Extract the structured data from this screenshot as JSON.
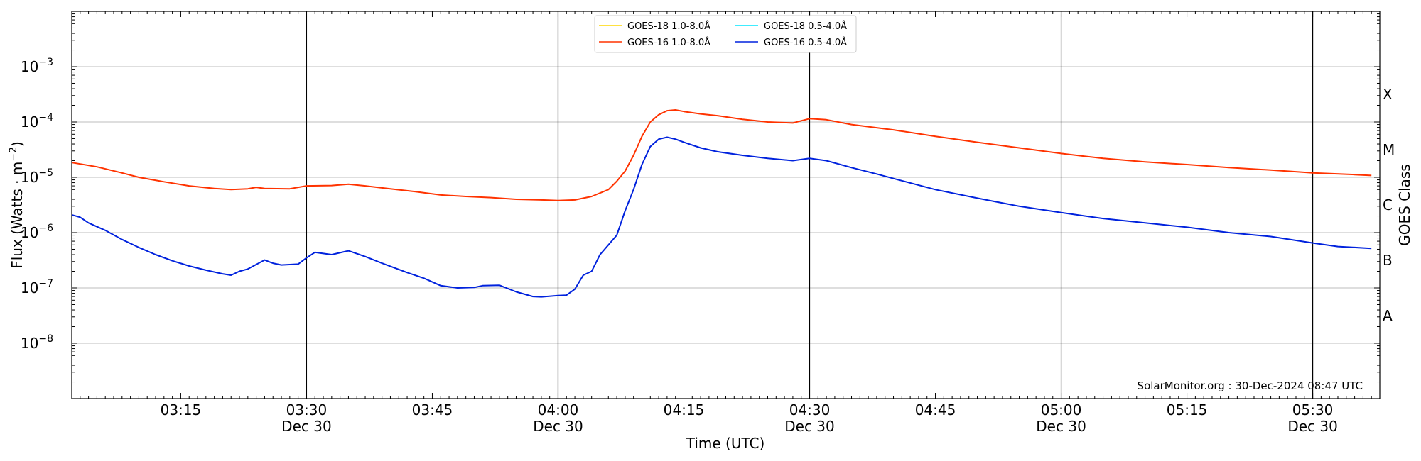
{
  "chart_data": {
    "type": "line",
    "xlabel": "Time (UTC)",
    "ylabel": "Flux (Watts · m",
    "ylabel_sup": "−2",
    "ylabel_close": ")",
    "y2label": "GOES Class",
    "y_scale": "log",
    "xlim": [
      "03:02",
      "05:38"
    ],
    "ylim": [
      1e-09,
      0.01
    ],
    "grid": "horizontal at decades",
    "legend_position": "top-center",
    "x_ticks": [
      {
        "t": "03:15",
        "label": "03:15",
        "date": ""
      },
      {
        "t": "03:30",
        "label": "03:30",
        "date": "Dec 30"
      },
      {
        "t": "03:45",
        "label": "03:45",
        "date": ""
      },
      {
        "t": "04:00",
        "label": "04:00",
        "date": "Dec 30"
      },
      {
        "t": "04:15",
        "label": "04:15",
        "date": ""
      },
      {
        "t": "04:30",
        "label": "04:30",
        "date": "Dec 30"
      },
      {
        "t": "04:45",
        "label": "04:45",
        "date": ""
      },
      {
        "t": "05:00",
        "label": "05:00",
        "date": "Dec 30"
      },
      {
        "t": "05:15",
        "label": "05:15",
        "date": ""
      },
      {
        "t": "05:30",
        "label": "05:30",
        "date": "Dec 30"
      }
    ],
    "vlines": [
      "03:30",
      "04:00",
      "04:30",
      "05:00",
      "05:30"
    ],
    "y_ticks": [
      {
        "exp": -8,
        "base": "10",
        "sup": "−8"
      },
      {
        "exp": -7,
        "base": "10",
        "sup": "−7"
      },
      {
        "exp": -6,
        "base": "10",
        "sup": "−6"
      },
      {
        "exp": -5,
        "base": "10",
        "sup": "−5"
      },
      {
        "exp": -4,
        "base": "10",
        "sup": "−4"
      },
      {
        "exp": -3,
        "base": "10",
        "sup": "−3"
      }
    ],
    "goes_classes": [
      {
        "label": "A",
        "exp": -8
      },
      {
        "label": "B",
        "exp": -7
      },
      {
        "label": "C",
        "exp": -6
      },
      {
        "label": "M",
        "exp": -5
      },
      {
        "label": "X",
        "exp": -4
      }
    ],
    "annotation": "SolarMonitor.org : 30-Dec-2024 08:47 UTC",
    "series": [
      {
        "name": "GOES-18 1.0-8.0Å",
        "color": "#ffd700",
        "points": []
      },
      {
        "name": "GOES-16 1.0-8.0Å",
        "color": "#ff3300",
        "points": [
          [
            "03:02",
            1.85e-05
          ],
          [
            "03:05",
            1.55e-05
          ],
          [
            "03:08",
            1.2e-05
          ],
          [
            "03:10",
            1e-05
          ],
          [
            "03:13",
            8.3e-06
          ],
          [
            "03:16",
            7e-06
          ],
          [
            "03:19",
            6.3e-06
          ],
          [
            "03:21",
            6e-06
          ],
          [
            "03:23",
            6.2e-06
          ],
          [
            "03:24",
            6.6e-06
          ],
          [
            "03:25",
            6.3e-06
          ],
          [
            "03:28",
            6.2e-06
          ],
          [
            "03:30",
            7e-06
          ],
          [
            "03:33",
            7.1e-06
          ],
          [
            "03:35",
            7.5e-06
          ],
          [
            "03:37",
            7e-06
          ],
          [
            "03:40",
            6.2e-06
          ],
          [
            "03:43",
            5.5e-06
          ],
          [
            "03:46",
            4.8e-06
          ],
          [
            "03:49",
            4.5e-06
          ],
          [
            "03:52",
            4.3e-06
          ],
          [
            "03:55",
            4e-06
          ],
          [
            "03:58",
            3.9e-06
          ],
          [
            "04:00",
            3.8e-06
          ],
          [
            "04:02",
            3.9e-06
          ],
          [
            "04:04",
            4.5e-06
          ],
          [
            "04:06",
            6e-06
          ],
          [
            "04:07",
            8.5e-06
          ],
          [
            "04:08",
            1.3e-05
          ],
          [
            "04:09",
            2.5e-05
          ],
          [
            "04:10",
            5.5e-05
          ],
          [
            "04:11",
            0.0001
          ],
          [
            "04:12",
            0.000135
          ],
          [
            "04:13",
            0.00016
          ],
          [
            "04:14",
            0.000165
          ],
          [
            "04:15",
            0.000155
          ],
          [
            "04:17",
            0.00014
          ],
          [
            "04:19",
            0.00013
          ],
          [
            "04:22",
            0.000112
          ],
          [
            "04:25",
            0.0001
          ],
          [
            "04:28",
            9.6e-05
          ],
          [
            "04:30",
            0.000115
          ],
          [
            "04:32",
            0.00011
          ],
          [
            "04:35",
            9e-05
          ],
          [
            "04:40",
            7.2e-05
          ],
          [
            "04:45",
            5.5e-05
          ],
          [
            "04:50",
            4.3e-05
          ],
          [
            "04:55",
            3.4e-05
          ],
          [
            "05:00",
            2.7e-05
          ],
          [
            "05:05",
            2.2e-05
          ],
          [
            "05:10",
            1.9e-05
          ],
          [
            "05:15",
            1.7e-05
          ],
          [
            "05:20",
            1.5e-05
          ],
          [
            "05:25",
            1.35e-05
          ],
          [
            "05:30",
            1.2e-05
          ],
          [
            "05:35",
            1.12e-05
          ],
          [
            "05:37",
            1.08e-05
          ]
        ]
      },
      {
        "name": "GOES-18 0.5-4.0Å",
        "color": "#00e5ff",
        "points": []
      },
      {
        "name": "GOES-16 0.5-4.0Å",
        "color": "#0022dd",
        "points": [
          [
            "03:02",
            2.1e-06
          ],
          [
            "03:03",
            1.9e-06
          ],
          [
            "03:04",
            1.5e-06
          ],
          [
            "03:06",
            1.1e-06
          ],
          [
            "03:08",
            7.5e-07
          ],
          [
            "03:10",
            5.4e-07
          ],
          [
            "03:12",
            4e-07
          ],
          [
            "03:14",
            3.1e-07
          ],
          [
            "03:16",
            2.5e-07
          ],
          [
            "03:18",
            2.1e-07
          ],
          [
            "03:20",
            1.8e-07
          ],
          [
            "03:21",
            1.7e-07
          ],
          [
            "03:22",
            2e-07
          ],
          [
            "03:23",
            2.2e-07
          ],
          [
            "03:25",
            3.2e-07
          ],
          [
            "03:26",
            2.8e-07
          ],
          [
            "03:27",
            2.6e-07
          ],
          [
            "03:29",
            2.7e-07
          ],
          [
            "03:30",
            3.5e-07
          ],
          [
            "03:31",
            4.4e-07
          ],
          [
            "03:33",
            4e-07
          ],
          [
            "03:35",
            4.7e-07
          ],
          [
            "03:37",
            3.7e-07
          ],
          [
            "03:39",
            2.8e-07
          ],
          [
            "03:42",
            1.9e-07
          ],
          [
            "03:44",
            1.5e-07
          ],
          [
            "03:46",
            1.1e-07
          ],
          [
            "03:48",
            1e-07
          ],
          [
            "03:50",
            1.02e-07
          ],
          [
            "03:51",
            1.1e-07
          ],
          [
            "03:53",
            1.12e-07
          ],
          [
            "03:55",
            8.5e-08
          ],
          [
            "03:57",
            7e-08
          ],
          [
            "03:58",
            6.9e-08
          ],
          [
            "04:00",
            7.3e-08
          ],
          [
            "04:01",
            7.4e-08
          ],
          [
            "04:02",
            9.5e-08
          ],
          [
            "04:03",
            1.7e-07
          ],
          [
            "04:04",
            2e-07
          ],
          [
            "04:05",
            4e-07
          ],
          [
            "04:06",
            6e-07
          ],
          [
            "04:07",
            9e-07
          ],
          [
            "04:08",
            2.5e-06
          ],
          [
            "04:09",
            6e-06
          ],
          [
            "04:10",
            1.7e-05
          ],
          [
            "04:11",
            3.6e-05
          ],
          [
            "04:12",
            4.9e-05
          ],
          [
            "04:13",
            5.3e-05
          ],
          [
            "04:14",
            4.9e-05
          ],
          [
            "04:15",
            4.3e-05
          ],
          [
            "04:17",
            3.4e-05
          ],
          [
            "04:19",
            2.9e-05
          ],
          [
            "04:22",
            2.5e-05
          ],
          [
            "04:25",
            2.2e-05
          ],
          [
            "04:28",
            2e-05
          ],
          [
            "04:30",
            2.2e-05
          ],
          [
            "04:32",
            2e-05
          ],
          [
            "04:35",
            1.5e-05
          ],
          [
            "04:38",
            1.15e-05
          ],
          [
            "04:40",
            9.5e-06
          ],
          [
            "04:45",
            6e-06
          ],
          [
            "04:50",
            4.2e-06
          ],
          [
            "04:55",
            3e-06
          ],
          [
            "05:00",
            2.3e-06
          ],
          [
            "05:05",
            1.8e-06
          ],
          [
            "05:10",
            1.5e-06
          ],
          [
            "05:15",
            1.25e-06
          ],
          [
            "05:20",
            1e-06
          ],
          [
            "05:25",
            8.5e-07
          ],
          [
            "05:30",
            6.5e-07
          ],
          [
            "05:33",
            5.6e-07
          ],
          [
            "05:37",
            5.2e-07
          ]
        ]
      }
    ]
  }
}
